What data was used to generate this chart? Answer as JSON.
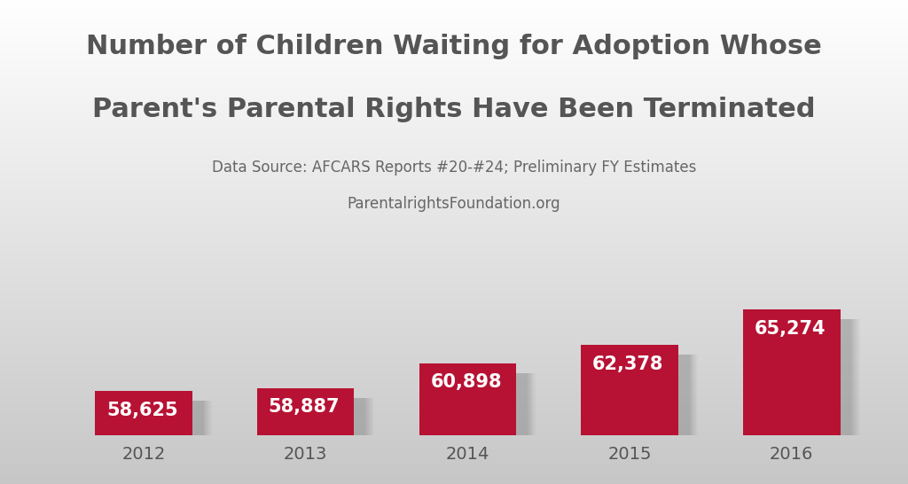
{
  "title_line1": "Number of Children Waiting for Adoption Whose",
  "title_line2": "Parent's Parental Rights Have Been Terminated",
  "subtitle_line1": "Data Source: AFCARS Reports #20-#24; Preliminary FY Estimates",
  "subtitle_line2": "ParentalrightsFoundation.org",
  "years": [
    "2012",
    "2013",
    "2014",
    "2015",
    "2016"
  ],
  "values": [
    58625,
    58887,
    60898,
    62378,
    65274
  ],
  "bar_color": "#B71234",
  "label_color": "#FFFFFF",
  "title_color": "#555555",
  "subtitle_color": "#666666",
  "tick_color": "#555555",
  "bar_width": 0.6,
  "ylim_min": 55000,
  "ylim_max": 70000,
  "title_fontsize": 22,
  "subtitle_fontsize": 12,
  "label_fontsize": 15,
  "tick_fontsize": 14
}
